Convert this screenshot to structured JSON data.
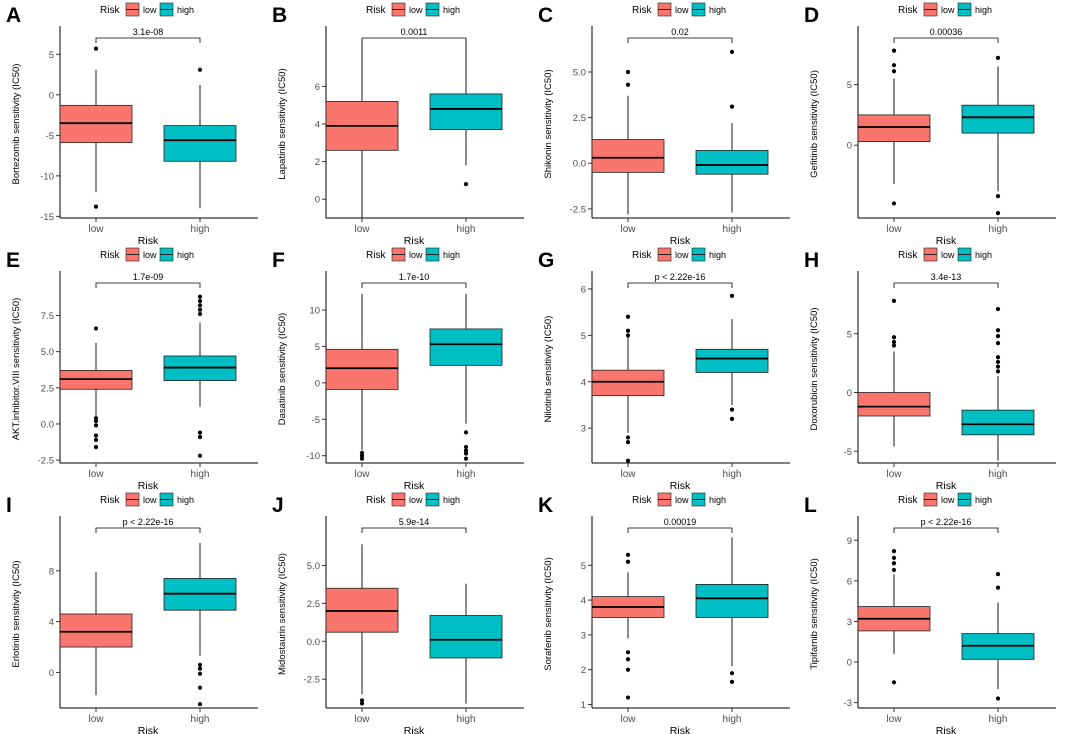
{
  "colors": {
    "low": "#F8766D",
    "high": "#00BFC4",
    "axis": "#000000",
    "text": "#4D4D4D"
  },
  "chart_data": [
    {
      "panel": "A",
      "type": "boxplot",
      "ylabel": "Bortezomib sensitivity (IC50)",
      "xlabel": "Risk",
      "legend": {
        "title": "Risk",
        "entries": [
          "low",
          "high"
        ]
      },
      "categories": [
        "low",
        "high"
      ],
      "pvalue": "3.1e-08",
      "ylim": [
        -15.2,
        8.0
      ],
      "yticks": [
        -15,
        -10,
        -5,
        0,
        5
      ],
      "ytick_labels": [
        "-15",
        "-10",
        "-5",
        "0",
        "5"
      ],
      "boxes": [
        {
          "group": "low",
          "whisker_low": -12.0,
          "q1": -5.9,
          "median": -3.5,
          "q3": -1.3,
          "whisker_high": 3.1,
          "outliers": [
            5.7,
            -13.8
          ]
        },
        {
          "group": "high",
          "whisker_low": -14.0,
          "q1": -8.2,
          "median": -5.6,
          "q3": -3.8,
          "whisker_high": 1.2,
          "outliers": [
            3.1
          ]
        }
      ]
    },
    {
      "panel": "B",
      "type": "boxplot",
      "ylabel": "Lapatinib sensitivity (IC50)",
      "xlabel": "Risk",
      "legend": {
        "title": "Risk",
        "entries": [
          "low",
          "high"
        ]
      },
      "categories": [
        "low",
        "high"
      ],
      "pvalue": "0.0011",
      "ylim": [
        -1.0,
        9.0
      ],
      "yticks": [
        0,
        2,
        4,
        6
      ],
      "ytick_labels": [
        "0",
        "2",
        "4",
        "6"
      ],
      "boxes": [
        {
          "group": "low",
          "whisker_low": -1.0,
          "q1": 2.6,
          "median": 3.9,
          "q3": 5.2,
          "whisker_high": 8.5,
          "outliers": []
        },
        {
          "group": "high",
          "whisker_low": 1.8,
          "q1": 3.7,
          "median": 4.8,
          "q3": 5.6,
          "whisker_high": 8.5,
          "outliers": [
            0.8
          ]
        }
      ]
    },
    {
      "panel": "C",
      "type": "boxplot",
      "ylabel": "Shikonin sensitivity (IC50)",
      "xlabel": "Risk",
      "legend": {
        "title": "Risk",
        "entries": [
          "low",
          "high"
        ]
      },
      "categories": [
        "low",
        "high"
      ],
      "pvalue": "0.02",
      "ylim": [
        -3.0,
        7.3
      ],
      "yticks": [
        -2.5,
        0.0,
        2.5,
        5.0
      ],
      "ytick_labels": [
        "-2.5",
        "0.0",
        "2.5",
        "5.0"
      ],
      "boxes": [
        {
          "group": "low",
          "whisker_low": -2.8,
          "q1": -0.5,
          "median": 0.3,
          "q3": 1.3,
          "whisker_high": 3.7,
          "outliers": [
            5.0,
            4.3
          ]
        },
        {
          "group": "high",
          "whisker_low": -2.7,
          "q1": -0.6,
          "median": -0.1,
          "q3": 0.7,
          "whisker_high": 2.2,
          "outliers": [
            6.1,
            3.1
          ]
        }
      ]
    },
    {
      "panel": "D",
      "type": "boxplot",
      "ylabel": "Gefitinib sensitivity (IC50)",
      "xlabel": "Risk",
      "legend": {
        "title": "Risk",
        "entries": [
          "low",
          "high"
        ]
      },
      "categories": [
        "low",
        "high"
      ],
      "pvalue": "0.00036",
      "ylim": [
        -6.0,
        9.5
      ],
      "yticks": [
        0,
        5
      ],
      "ytick_labels": [
        "0",
        "5"
      ],
      "boxes": [
        {
          "group": "low",
          "whisker_low": -3.2,
          "q1": 0.3,
          "median": 1.5,
          "q3": 2.5,
          "whisker_high": 5.5,
          "outliers": [
            7.8,
            6.6,
            6.1,
            -4.8
          ]
        },
        {
          "group": "high",
          "whisker_low": -3.8,
          "q1": 1.0,
          "median": 2.3,
          "q3": 3.3,
          "whisker_high": 6.5,
          "outliers": [
            7.2,
            -4.2,
            -5.6
          ]
        }
      ]
    },
    {
      "panel": "E",
      "type": "boxplot",
      "ylabel": "AKT.inhibitor.VIII sensitivity (IC50)",
      "xlabel": "Risk",
      "legend": {
        "title": "Risk",
        "entries": [
          "low",
          "high"
        ]
      },
      "categories": [
        "low",
        "high"
      ],
      "pvalue": "1.7e-09",
      "ylim": [
        -2.7,
        10.3
      ],
      "yticks": [
        -2.5,
        0.0,
        2.5,
        5.0,
        7.5
      ],
      "ytick_labels": [
        "-2.5",
        "0.0",
        "2.5",
        "5.0",
        "7.5"
      ],
      "boxes": [
        {
          "group": "low",
          "whisker_low": 0.5,
          "q1": 2.4,
          "median": 3.1,
          "q3": 3.7,
          "whisker_high": 5.6,
          "outliers": [
            6.6,
            0.4,
            0.2,
            -0.1,
            -0.8,
            -1.1,
            -1.6
          ]
        },
        {
          "group": "high",
          "whisker_low": 1.2,
          "q1": 3.0,
          "median": 3.9,
          "q3": 4.7,
          "whisker_high": 7.0,
          "outliers": [
            8.8,
            8.5,
            8.2,
            7.9,
            7.6,
            -0.6,
            -0.9,
            -2.2
          ]
        }
      ]
    },
    {
      "panel": "F",
      "type": "boxplot",
      "ylabel": "Dasatinib sensitivity (IC50)",
      "xlabel": "Risk",
      "legend": {
        "title": "Risk",
        "entries": [
          "low",
          "high"
        ]
      },
      "categories": [
        "low",
        "high"
      ],
      "pvalue": "1.7e-10",
      "ylim": [
        -11.0,
        14.8
      ],
      "yticks": [
        -10,
        -5,
        0,
        5,
        10
      ],
      "ytick_labels": [
        "-10",
        "-5",
        "0",
        "5",
        "10"
      ],
      "boxes": [
        {
          "group": "low",
          "whisker_low": -9.2,
          "q1": -0.9,
          "median": 2.0,
          "q3": 4.6,
          "whisker_high": 12.2,
          "outliers": [
            -9.6,
            -10.0,
            -10.4
          ]
        },
        {
          "group": "high",
          "whisker_low": -5.6,
          "q1": 2.4,
          "median": 5.3,
          "q3": 7.4,
          "whisker_high": 12.2,
          "outliers": [
            -6.8,
            -8.8,
            -9.3,
            -9.7,
            -10.4
          ]
        }
      ]
    },
    {
      "panel": "G",
      "type": "boxplot",
      "ylabel": "Nilotinib sensitivity (IC50)",
      "xlabel": "Risk",
      "legend": {
        "title": "Risk",
        "entries": [
          "low",
          "high"
        ]
      },
      "categories": [
        "low",
        "high"
      ],
      "pvalue": "p < 2.22e-16",
      "ylim": [
        2.25,
        6.3
      ],
      "yticks": [
        3,
        4,
        5,
        6
      ],
      "ytick_labels": [
        "3",
        "4",
        "5",
        "6"
      ],
      "boxes": [
        {
          "group": "low",
          "whisker_low": 2.9,
          "q1": 3.7,
          "median": 4.0,
          "q3": 4.25,
          "whisker_high": 5.0,
          "outliers": [
            5.4,
            5.1,
            5.0,
            2.8,
            2.7,
            2.3
          ]
        },
        {
          "group": "high",
          "whisker_low": 3.5,
          "q1": 4.2,
          "median": 4.5,
          "q3": 4.7,
          "whisker_high": 5.35,
          "outliers": [
            5.85,
            3.4,
            3.2
          ]
        }
      ]
    },
    {
      "panel": "H",
      "type": "boxplot",
      "ylabel": "Doxorubicin sensitivity (IC50)",
      "xlabel": "Risk",
      "legend": {
        "title": "Risk",
        "entries": [
          "low",
          "high"
        ]
      },
      "categories": [
        "low",
        "high"
      ],
      "pvalue": "3.4e-13",
      "ylim": [
        -6.0,
        10.0
      ],
      "yticks": [
        -5,
        0,
        5
      ],
      "ytick_labels": [
        "-5",
        "0",
        "5"
      ],
      "boxes": [
        {
          "group": "low",
          "whisker_low": -4.6,
          "q1": -2.0,
          "median": -1.2,
          "q3": 0.0,
          "whisker_high": 3.5,
          "outliers": [
            7.8,
            4.7,
            4.3,
            4.0
          ]
        },
        {
          "group": "high",
          "whisker_low": -5.8,
          "q1": -3.6,
          "median": -2.7,
          "q3": -1.5,
          "whisker_high": 1.4,
          "outliers": [
            7.1,
            5.3,
            4.8,
            4.2,
            3.0,
            2.6,
            2.2,
            1.8
          ]
        }
      ]
    },
    {
      "panel": "I",
      "type": "boxplot",
      "ylabel": "Erlotinib sensitivity (IC50)",
      "xlabel": "Risk",
      "legend": {
        "title": "Risk",
        "entries": [
          "low",
          "high"
        ]
      },
      "categories": [
        "low",
        "high"
      ],
      "pvalue": "p < 2.22e-16",
      "ylim": [
        -2.8,
        12.0
      ],
      "yticks": [
        0,
        4,
        8
      ],
      "ytick_labels": [
        "0",
        "4",
        "8"
      ],
      "boxes": [
        {
          "group": "low",
          "whisker_low": -1.8,
          "q1": 2.0,
          "median": 3.2,
          "q3": 4.6,
          "whisker_high": 7.9,
          "outliers": []
        },
        {
          "group": "high",
          "whisker_low": 1.3,
          "q1": 4.9,
          "median": 6.2,
          "q3": 7.4,
          "whisker_high": 10.2,
          "outliers": [
            0.6,
            0.3,
            -0.1,
            -1.2,
            -2.5
          ]
        }
      ]
    },
    {
      "panel": "J",
      "type": "boxplot",
      "ylabel": "Midostaurin sensitivity (IC50)",
      "xlabel": "Risk",
      "legend": {
        "title": "Risk",
        "entries": [
          "low",
          "high"
        ]
      },
      "categories": [
        "low",
        "high"
      ],
      "pvalue": "5.9e-14",
      "ylim": [
        -4.4,
        8.0
      ],
      "yticks": [
        -2.5,
        0.0,
        2.5,
        5.0
      ],
      "ytick_labels": [
        "-2.5",
        "0.0",
        "2.5",
        "5.0"
      ],
      "boxes": [
        {
          "group": "low",
          "whisker_low": -3.5,
          "q1": 0.6,
          "median": 2.0,
          "q3": 3.5,
          "whisker_high": 6.4,
          "outliers": [
            -3.9,
            -4.1
          ]
        },
        {
          "group": "high",
          "whisker_low": -4.1,
          "q1": -1.1,
          "median": 0.1,
          "q3": 1.7,
          "whisker_high": 3.8,
          "outliers": []
        }
      ]
    },
    {
      "panel": "K",
      "type": "boxplot",
      "ylabel": "Sorafenib sensitivity (IC50)",
      "xlabel": "Risk",
      "legend": {
        "title": "Risk",
        "entries": [
          "low",
          "high"
        ]
      },
      "categories": [
        "low",
        "high"
      ],
      "pvalue": "0.00019",
      "ylim": [
        0.9,
        6.3
      ],
      "yticks": [
        1,
        2,
        3,
        4,
        5
      ],
      "ytick_labels": [
        "1",
        "2",
        "3",
        "4",
        "5"
      ],
      "boxes": [
        {
          "group": "low",
          "whisker_low": 2.9,
          "q1": 3.5,
          "median": 3.8,
          "q3": 4.1,
          "whisker_high": 4.8,
          "outliers": [
            5.3,
            5.1,
            2.5,
            2.3,
            2.0,
            1.2
          ]
        },
        {
          "group": "high",
          "whisker_low": 2.1,
          "q1": 3.5,
          "median": 4.05,
          "q3": 4.45,
          "whisker_high": 5.8,
          "outliers": [
            1.9,
            1.65
          ]
        }
      ]
    },
    {
      "panel": "L",
      "type": "boxplot",
      "ylabel": "Tipifarnib sensitivity (IC50)",
      "xlabel": "Risk",
      "legend": {
        "title": "Risk",
        "entries": [
          "low",
          "high"
        ]
      },
      "categories": [
        "low",
        "high"
      ],
      "pvalue": "p < 2.22e-16",
      "ylim": [
        -3.4,
        10.5
      ],
      "yticks": [
        -3,
        0,
        3,
        6,
        9
      ],
      "ytick_labels": [
        "-3",
        "0",
        "3",
        "6",
        "9"
      ],
      "boxes": [
        {
          "group": "low",
          "whisker_low": 0.6,
          "q1": 2.3,
          "median": 3.2,
          "q3": 4.1,
          "whisker_high": 6.5,
          "outliers": [
            8.2,
            7.7,
            7.3,
            6.8,
            -1.5
          ]
        },
        {
          "group": "high",
          "whisker_low": -2.0,
          "q1": 0.2,
          "median": 1.2,
          "q3": 2.1,
          "whisker_high": 4.4,
          "outliers": [
            6.5,
            5.5,
            -2.7
          ]
        }
      ]
    }
  ]
}
